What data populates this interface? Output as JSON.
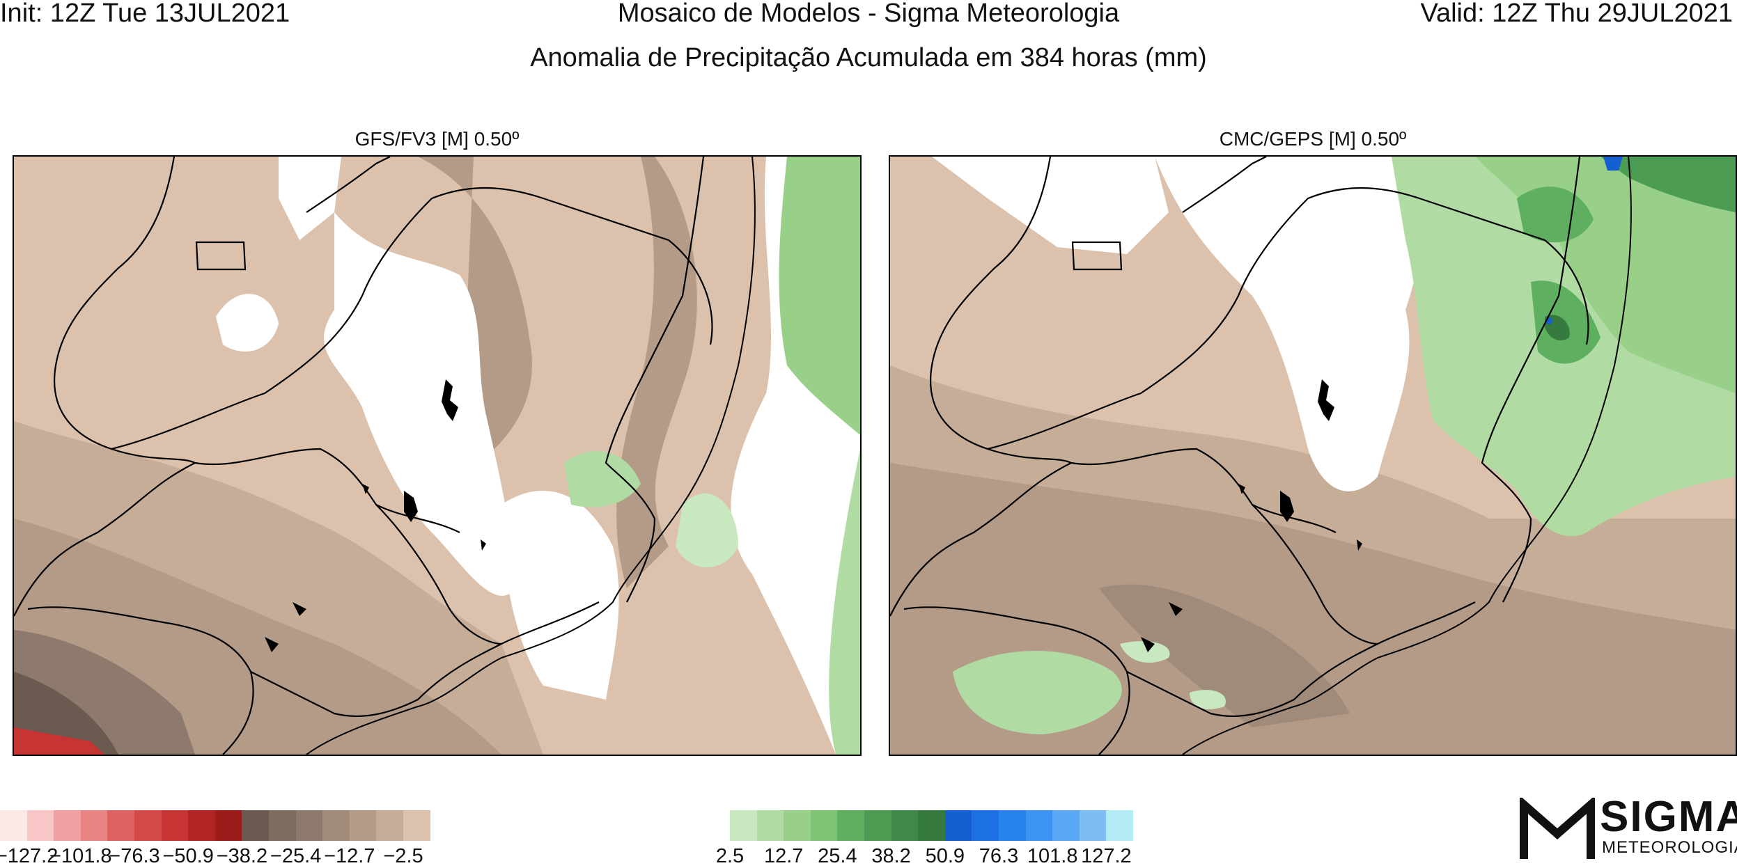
{
  "header": {
    "init": "Init: 12Z Tue 13JUL2021",
    "title": "Mosaico de Modelos - Sigma Meteorologia",
    "valid": "Valid: 12Z Thu 29JUL2021",
    "subtitle": "Anomalia de Precipitação Acumulada em 384 horas (mm)"
  },
  "panels": [
    {
      "title": "GFS/FV3 [M] 0.50º"
    },
    {
      "title": "CMC/GEPS [M] 0.50º"
    }
  ],
  "legend": {
    "negative_colors": [
      "#fde8e8",
      "#f9c6c8",
      "#f2a0a2",
      "#e88484",
      "#de6262",
      "#d44a4a",
      "#c63434",
      "#b02424",
      "#9c1c1c",
      "#6b5a50",
      "#7e6c60",
      "#8d7a6c",
      "#a08a7a",
      "#b39b88",
      "#c6ad98",
      "#dcc2ac"
    ],
    "positive_colors": [
      "#c8e8c0",
      "#b0dca4",
      "#98d08a",
      "#7ec474",
      "#5eb060",
      "#4c9c54",
      "#3f8848",
      "#367a40",
      "#1460d0",
      "#1c70e4",
      "#2882ec",
      "#3c94f0",
      "#5aa8f4",
      "#7ebcf6",
      "#b4ecf6"
    ],
    "negative_labels": [
      "−127.2",
      "−101.8",
      "−76.3",
      "−50.9",
      "−38.2",
      "−25.4",
      "−12.7",
      "−2.5"
    ],
    "positive_labels": [
      "2.5",
      "12.7",
      "25.4",
      "38.2",
      "50.9",
      "76.3",
      "101.8",
      "127.2"
    ]
  },
  "logo": {
    "name": "SIGMA",
    "tagline": "METEOROLOGIA"
  }
}
